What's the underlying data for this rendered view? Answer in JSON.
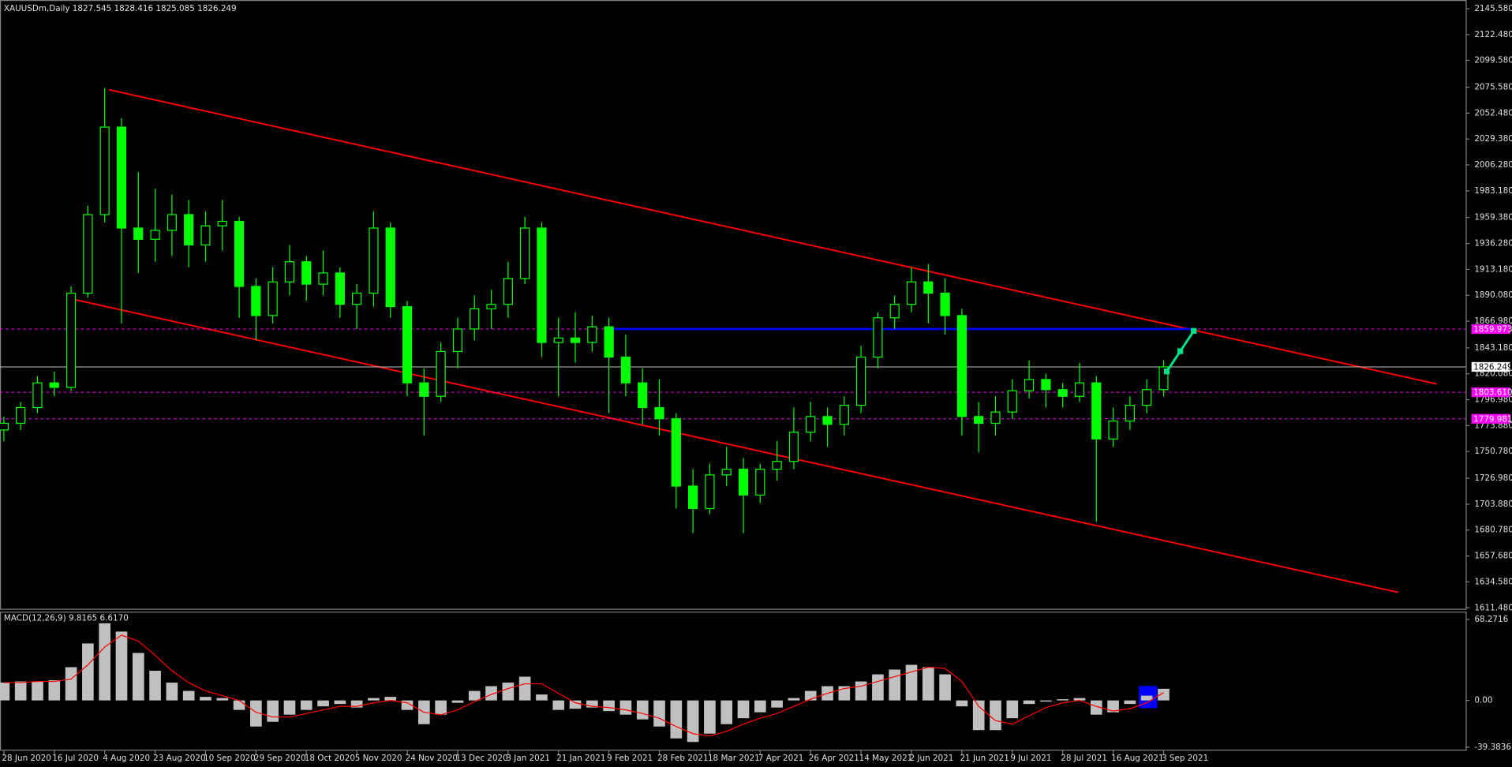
{
  "chart_data": [
    {
      "type": "candlestick",
      "title": "XAUUSDm,Daily  1827.545 1828.416 1825.085 1826.249",
      "color": "#00ff00",
      "categories": [
        "28 Jun 2020",
        null,
        null,
        "16 Jul 2020",
        null,
        null,
        "4 Aug 2020",
        null,
        null,
        "23 Aug 2020",
        null,
        null,
        "10 Sep 2020",
        null,
        null,
        "29 Sep 2020",
        null,
        null,
        "18 Oct 2020",
        null,
        null,
        "5 Nov 2020",
        null,
        null,
        "24 Nov 2020",
        null,
        null,
        "13 Dec 2020",
        null,
        null,
        "3 Jan 2021",
        null,
        null,
        "21 Jan 2021",
        null,
        null,
        "9 Feb 2021",
        null,
        null,
        "28 Feb 2021",
        null,
        null,
        "18 Mar 2021",
        null,
        null,
        "7 Apr 2021",
        null,
        null,
        "26 Apr 2021",
        null,
        null,
        "14 May 2021",
        null,
        null,
        "2 Jun 2021",
        null,
        null,
        "21 Jun 2021",
        null,
        null,
        "9 Jul 2021",
        null,
        null,
        "28 Jul 2021",
        null,
        null,
        "16 Aug 2021",
        null,
        null,
        "3 Sep 2021"
      ],
      "open": [
        1770,
        1776,
        1790,
        1812,
        1808,
        1892,
        1962,
        2040,
        1950,
        1940,
        1948,
        1962,
        1935,
        1952,
        1956,
        1898,
        1872,
        1902,
        1920,
        1900,
        1910,
        1882,
        1892,
        1950,
        1880,
        1812,
        1800,
        1840,
        1860,
        1878,
        1882,
        1905,
        1950,
        1848,
        1852,
        1848,
        1862,
        1835,
        1812,
        1790,
        1780,
        1720,
        1700,
        1730,
        1735,
        1712,
        1735,
        1742,
        1768,
        1782,
        1775,
        1792,
        1835,
        1870,
        1882,
        1902,
        1892,
        1872,
        1782,
        1776,
        1786,
        1805,
        1815,
        1806,
        1800,
        1812,
        1762,
        1778,
        1792,
        1806
      ],
      "high": [
        1782,
        1795,
        1818,
        1822,
        1898,
        1970,
        2075,
        2048,
        2000,
        1985,
        1980,
        1975,
        1965,
        1975,
        1960,
        1905,
        1915,
        1935,
        1925,
        1930,
        1915,
        1900,
        1965,
        1955,
        1885,
        1825,
        1848,
        1870,
        1890,
        1895,
        1920,
        1960,
        1955,
        1870,
        1875,
        1872,
        1870,
        1855,
        1825,
        1815,
        1785,
        1735,
        1740,
        1755,
        1745,
        1740,
        1760,
        1790,
        1795,
        1790,
        1800,
        1845,
        1875,
        1890,
        1915,
        1918,
        1905,
        1878,
        1795,
        1800,
        1815,
        1832,
        1820,
        1812,
        1830,
        1818,
        1790,
        1800,
        1815,
        1832
      ],
      "low": [
        1760,
        1770,
        1785,
        1800,
        1805,
        1888,
        1955,
        1865,
        1910,
        1920,
        1925,
        1915,
        1920,
        1930,
        1870,
        1850,
        1865,
        1890,
        1885,
        1890,
        1870,
        1860,
        1880,
        1870,
        1800,
        1765,
        1795,
        1825,
        1850,
        1860,
        1870,
        1900,
        1835,
        1800,
        1830,
        1840,
        1785,
        1800,
        1775,
        1765,
        1700,
        1678,
        1695,
        1720,
        1678,
        1705,
        1725,
        1735,
        1760,
        1755,
        1765,
        1785,
        1825,
        1860,
        1875,
        1865,
        1855,
        1765,
        1750,
        1765,
        1780,
        1798,
        1790,
        1790,
        1795,
        1688,
        1755,
        1770,
        1785,
        1800
      ],
      "close": [
        1776,
        1790,
        1812,
        1808,
        1892,
        1962,
        2040,
        1950,
        1940,
        1948,
        1962,
        1935,
        1952,
        1956,
        1898,
        1872,
        1902,
        1920,
        1900,
        1910,
        1882,
        1892,
        1950,
        1880,
        1812,
        1800,
        1840,
        1860,
        1878,
        1882,
        1905,
        1950,
        1848,
        1852,
        1848,
        1862,
        1835,
        1812,
        1790,
        1780,
        1720,
        1700,
        1730,
        1735,
        1712,
        1735,
        1742,
        1768,
        1782,
        1775,
        1792,
        1835,
        1870,
        1882,
        1902,
        1892,
        1872,
        1782,
        1776,
        1786,
        1805,
        1815,
        1806,
        1800,
        1812,
        1762,
        1778,
        1792,
        1806,
        1826.249
      ],
      "ylim": [
        1609.76,
        2153.32
      ],
      "yticks": [
        {
          "value": 2145.58,
          "label": "2145.580"
        },
        {
          "value": 2122.48,
          "label": "2122.480"
        },
        {
          "value": 2099.58,
          "label": "2099.580"
        },
        {
          "value": 2075.58,
          "label": "2075.580"
        },
        {
          "value": 2052.48,
          "label": "2052.480"
        },
        {
          "value": 2029.38,
          "label": "2029.380"
        },
        {
          "value": 2006.28,
          "label": "2006.280"
        },
        {
          "value": 1983.18,
          "label": "1983.180"
        },
        {
          "value": 1959.38,
          "label": "1959.380"
        },
        {
          "value": 1936.28,
          "label": "1936.280"
        },
        {
          "value": 1913.18,
          "label": "1913.180"
        },
        {
          "value": 1890.08,
          "label": "1890.080"
        },
        {
          "value": 1866.98,
          "label": "1866.980"
        },
        {
          "value": 1843.18,
          "label": "1843.180"
        },
        {
          "value": 1820.08,
          "label": "1820.080"
        },
        {
          "value": 1796.98,
          "label": "1796.980"
        },
        {
          "value": 1773.88,
          "label": "1773.880"
        },
        {
          "value": 1750.78,
          "label": "1750.780"
        },
        {
          "value": 1726.98,
          "label": "1726.980"
        },
        {
          "value": 1703.88,
          "label": "1703.880"
        },
        {
          "value": 1680.78,
          "label": "1680.780"
        },
        {
          "value": 1657.68,
          "label": "1657.680"
        },
        {
          "value": 1634.58,
          "label": "1634.580"
        },
        {
          "value": 1611.48,
          "label": "1611.480"
        }
      ],
      "levels": [
        {
          "value": 1859.973,
          "color": "#ff00ff",
          "style": "dashed"
        },
        {
          "value": 1826.249,
          "color": "#c0c0c0",
          "style": "solid"
        },
        {
          "value": 1803.61,
          "label": "1803.610",
          "color": "#ff00ff",
          "style": "dashed"
        },
        {
          "value": 1779.981,
          "color": "#ff00ff",
          "style": "dashed"
        }
      ]
    },
    {
      "type": "macd",
      "title": "MACD(12,26,9) 9.8165 6.6170",
      "color": "#c0c0c0",
      "signal_color": "#ff0000",
      "values": [
        15,
        16,
        16,
        17,
        28,
        48,
        65,
        58,
        40,
        25,
        15,
        8,
        3,
        2,
        -8,
        -22,
        -18,
        -12,
        -8,
        -5,
        -3,
        -6,
        2,
        3,
        -8,
        -20,
        -12,
        -2,
        8,
        12,
        15,
        20,
        5,
        -8,
        -7,
        -6,
        -9,
        -12,
        -16,
        -22,
        -32,
        -35,
        -28,
        -20,
        -15,
        -10,
        -6,
        2,
        8,
        12,
        12,
        16,
        22,
        26,
        30,
        28,
        22,
        -5,
        -25,
        -25,
        -15,
        -3,
        -1,
        1,
        2,
        -12,
        -10,
        -3,
        4,
        9.8165
      ],
      "signal": [
        15,
        15,
        16,
        16,
        18,
        30,
        45,
        55,
        50,
        38,
        25,
        15,
        8,
        4,
        0,
        -10,
        -14,
        -14,
        -11,
        -8,
        -5,
        -5,
        -2,
        0,
        -2,
        -10,
        -12,
        -8,
        -1,
        5,
        10,
        14,
        14,
        6,
        -2,
        -5,
        -6,
        -8,
        -11,
        -15,
        -22,
        -28,
        -30,
        -26,
        -20,
        -15,
        -11,
        -5,
        1,
        6,
        10,
        12,
        16,
        20,
        24,
        28,
        27,
        16,
        -5,
        -17,
        -20,
        -13,
        -6,
        -2,
        0,
        -5,
        -9,
        -7,
        -2,
        6.617
      ],
      "ylim": [
        -42.27,
        74.77
      ],
      "yticks": [
        68.2716,
        {
          "value": 0,
          "label": "0.00"
        },
        -39.3836
      ]
    }
  ]
}
